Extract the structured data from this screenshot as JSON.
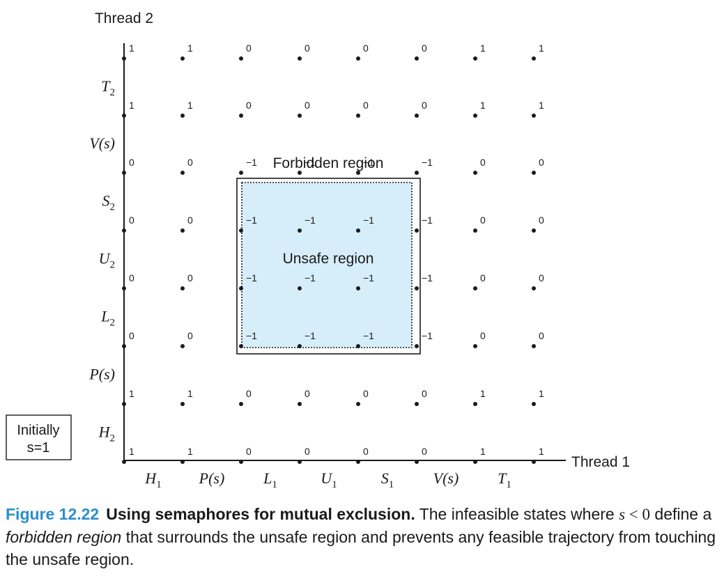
{
  "axes": {
    "y_axis_label": "Thread 2",
    "x_axis_label": "Thread 1",
    "x_ticks": [
      "H₁",
      "P(s)",
      "L₁",
      "U₁",
      "S₁",
      "V(s)",
      "T₁"
    ],
    "y_ticks": [
      "H₂",
      "P(s)",
      "L₂",
      "U₂",
      "S₂",
      "V(s)",
      "T₂"
    ]
  },
  "initial_box": {
    "line1": "Initially",
    "line2": "s=1"
  },
  "grid_values": [
    [
      "1",
      "1",
      "0",
      "0",
      "0",
      "0",
      "1",
      "1"
    ],
    [
      "1",
      "1",
      "0",
      "0",
      "0",
      "0",
      "1",
      "1"
    ],
    [
      "0",
      "0",
      "−1",
      "−1",
      "−1",
      "−1",
      "0",
      "0"
    ],
    [
      "0",
      "0",
      "−1",
      "−1",
      "−1",
      "−1",
      "0",
      "0"
    ],
    [
      "0",
      "0",
      "−1",
      "−1",
      "−1",
      "−1",
      "0",
      "0"
    ],
    [
      "0",
      "0",
      "−1",
      "−1",
      "−1",
      "−1",
      "0",
      "0"
    ],
    [
      "1",
      "1",
      "0",
      "0",
      "0",
      "0",
      "1",
      "1"
    ],
    [
      "1",
      "1",
      "0",
      "0",
      "0",
      "0",
      "1",
      "1"
    ]
  ],
  "regions": {
    "forbidden_label": "Forbidden region",
    "unsafe_label": "Unsafe region",
    "unsafe_fill": "#d6eef9"
  },
  "caption": {
    "figure_number": "Figure 12.22",
    "title": "Using semaphores for mutual exclusion.",
    "text_1": " The infeasible states where ",
    "var_s": "s",
    "inequality": " < 0",
    "text_2": " define a ",
    "emphasis": "forbidden region",
    "text_3": " that surrounds the unsafe region and prevents any feasible trajectory from touching the unsafe region."
  },
  "colors": {
    "caption_accent": "#2b8fc9",
    "ink": "#1a1a1a"
  }
}
